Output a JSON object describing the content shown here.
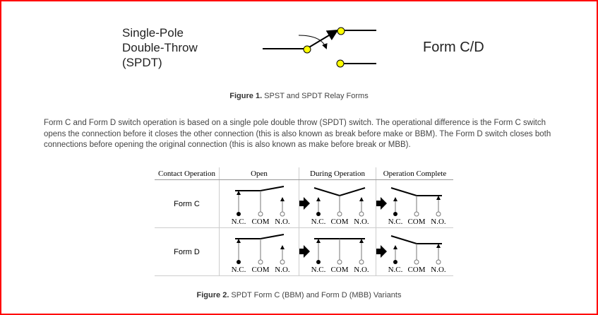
{
  "figure1": {
    "label_lines": [
      "Single-Pole",
      "Double-Throw",
      "(SPDT)"
    ],
    "form_label": "Form C/D",
    "caption_bold": "Figure 1.",
    "caption_text": " SPST and SPDT Relay Forms",
    "contact_color": "#ffff00"
  },
  "paragraph": "Form C and Form D switch operation is based on a single pole double throw (SPDT) switch. The operational difference is the Form C switch opens the connection before it closes the other connection (this is also known as break before make or BBM). The Form D switch closes both connections before opening the original connection (this is also known as make before break or MBB).",
  "table": {
    "headers": [
      "Contact Operation",
      "Open",
      "During Operation",
      "Operation Complete"
    ],
    "terminal_labels": [
      "N.C.",
      "COM",
      "N.O."
    ],
    "rows": [
      {
        "label": "Form C",
        "states": [
          "open",
          "during-bbm",
          "complete"
        ]
      },
      {
        "label": "Form D",
        "states": [
          "open",
          "during-mbb",
          "complete"
        ]
      }
    ]
  },
  "figure2": {
    "caption_bold": "Figure 2.",
    "caption_text": " SPDT Form C (BBM) and Form D (MBB) Variants"
  },
  "border_color": "#ff0000"
}
